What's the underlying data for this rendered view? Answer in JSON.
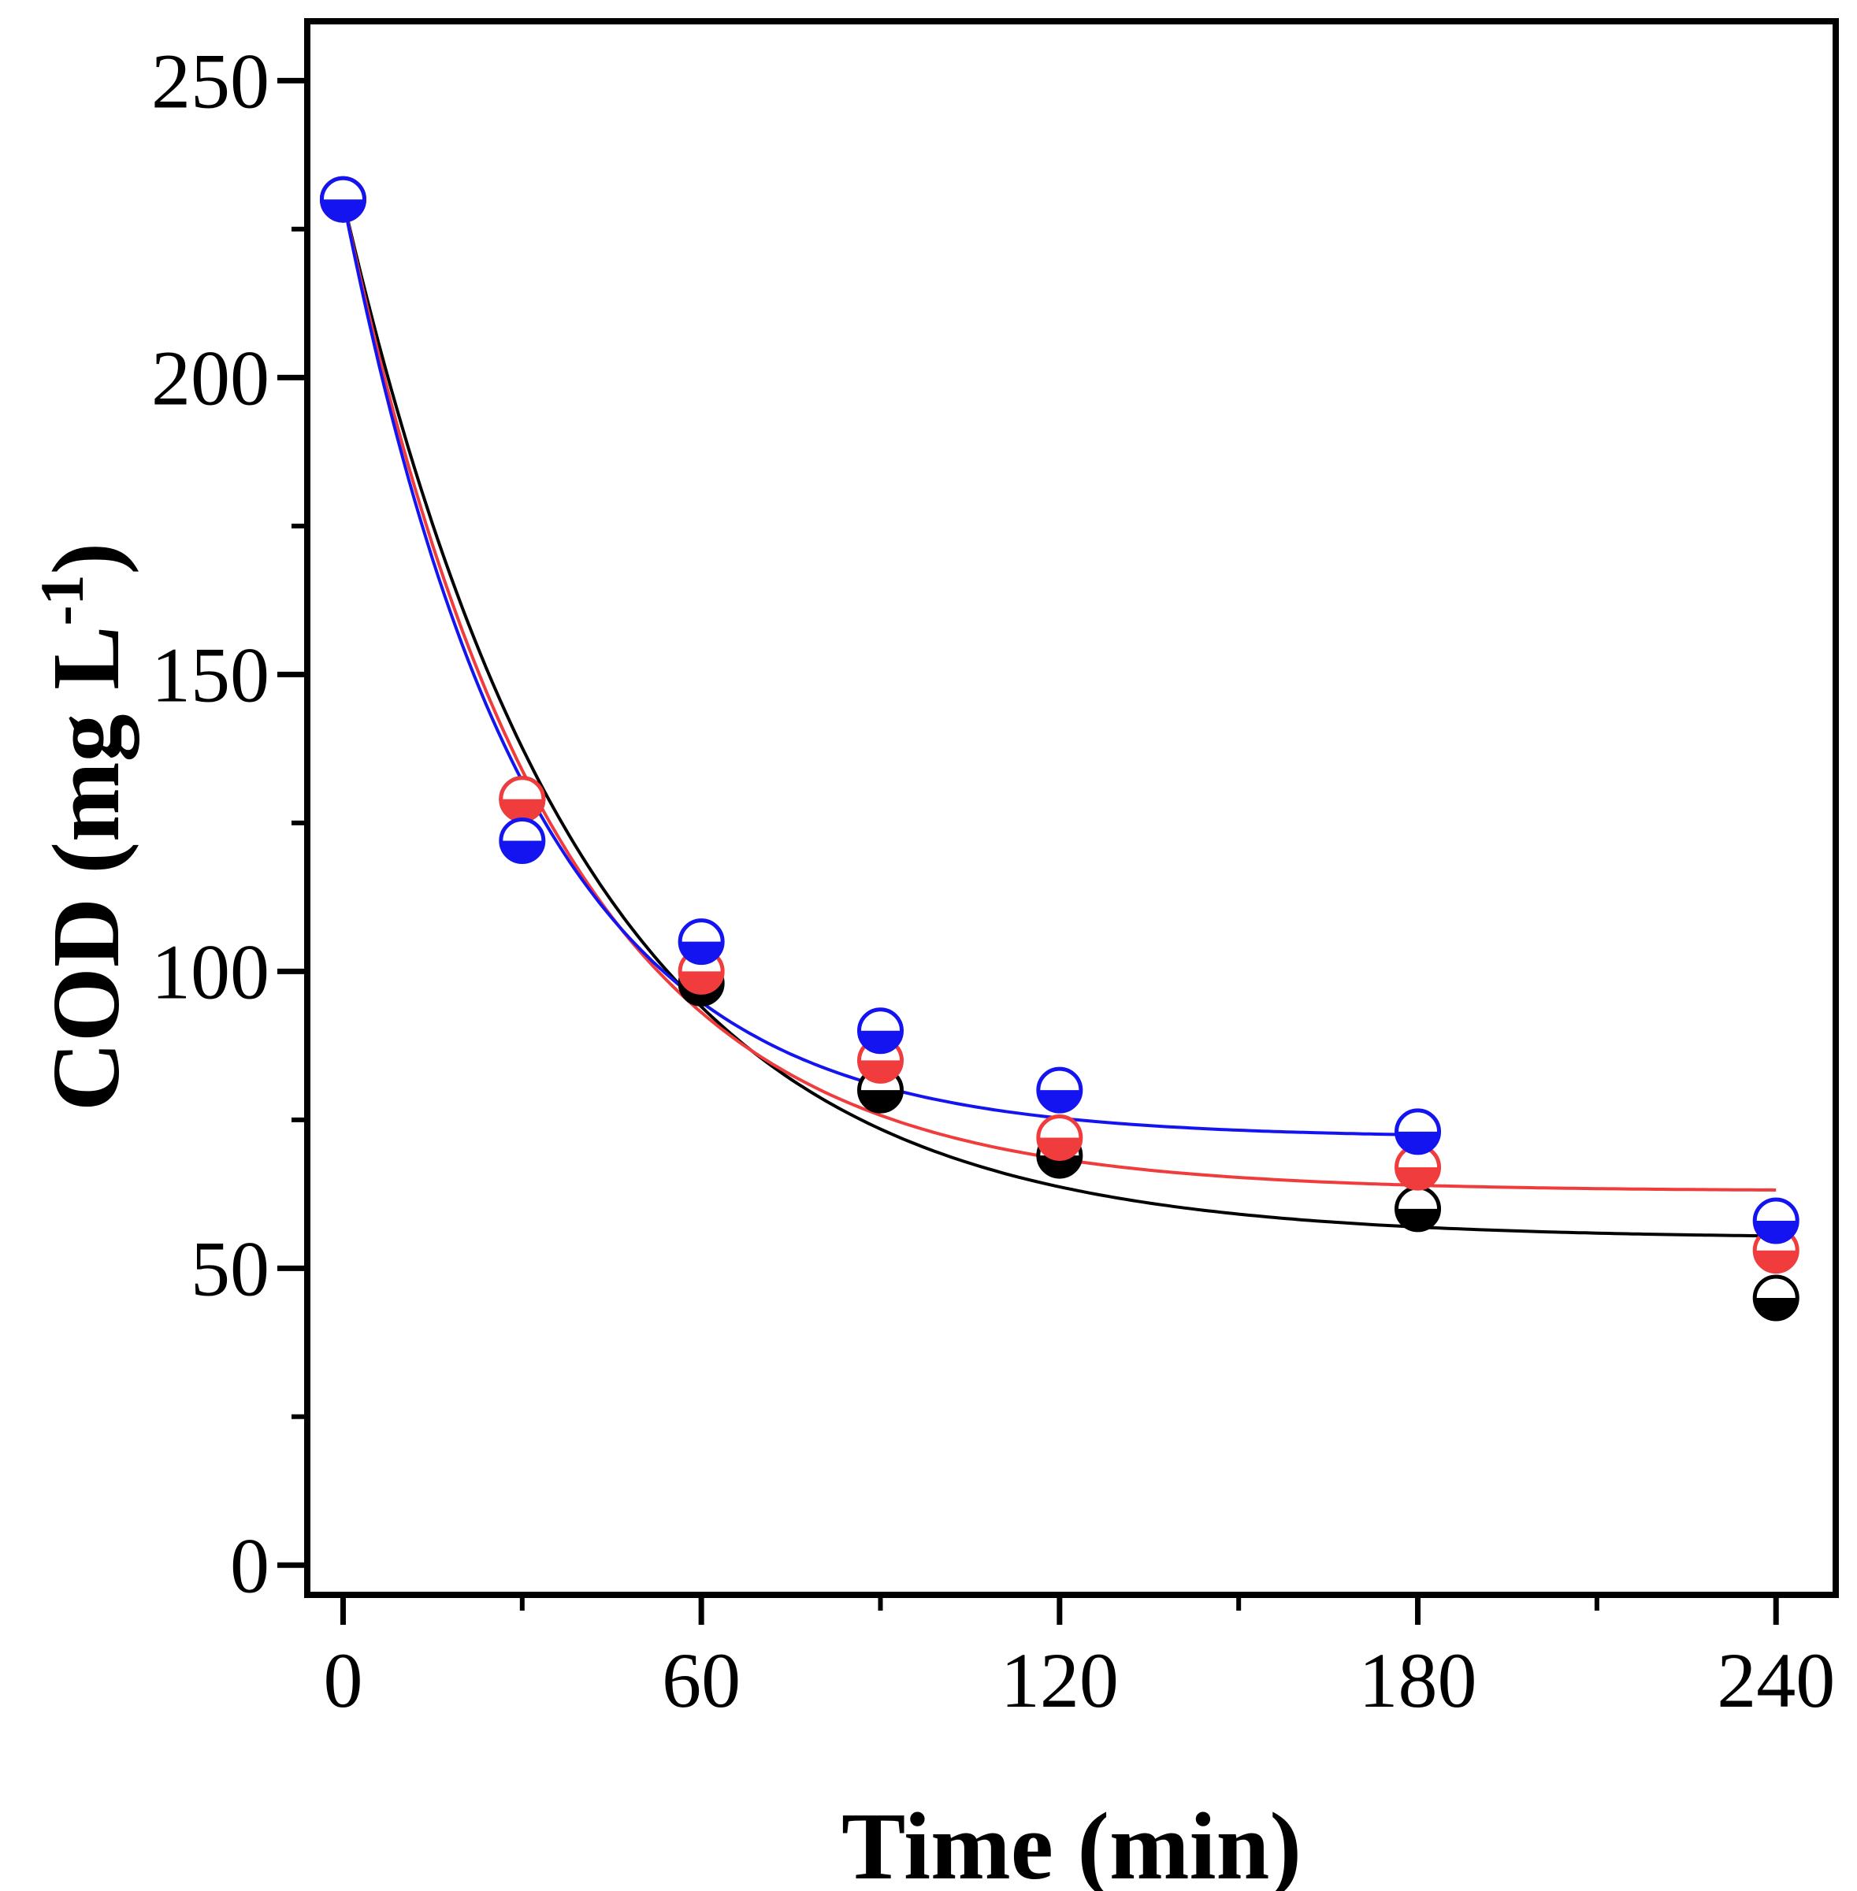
{
  "chart_data": {
    "type": "scatter",
    "title": "",
    "xlabel": "Time (min)",
    "ylabel_main": "COD (mg L",
    "ylabel_superscript": "-1",
    "ylabel_close": ")",
    "xlim": [
      -6,
      250
    ],
    "ylim": [
      -5,
      260
    ],
    "xticks": [
      0,
      60,
      120,
      180,
      240
    ],
    "xtick_labels": [
      "0",
      "60",
      "120",
      "180",
      "240"
    ],
    "yticks": [
      0,
      50,
      100,
      150,
      200,
      250
    ],
    "ytick_labels": [
      "0",
      "50",
      "100",
      "150",
      "200",
      "250"
    ],
    "yminor_ticks": [
      25,
      75,
      125,
      175,
      225
    ],
    "grid": false,
    "legend": "none",
    "series": [
      {
        "name": "series-black",
        "color": "#000000",
        "marker": "circle-half-filled-bottom",
        "x": [
          0,
          30,
          60,
          90,
          120,
          180,
          240
        ],
        "y": [
          230,
          129,
          98,
          80,
          69,
          60,
          45
        ],
        "fit": {
          "model": "exponential-decay",
          "y0": 55,
          "A": 175,
          "tau": 40
        }
      },
      {
        "name": "series-red",
        "color": "#f03c3c",
        "marker": "circle-half-filled-bottom",
        "x": [
          0,
          30,
          60,
          90,
          120,
          180,
          240
        ],
        "y": [
          230,
          129,
          100,
          85,
          72,
          67,
          53
        ],
        "fit": {
          "model": "exponential-decay",
          "y0": 63,
          "A": 167,
          "tau": 35
        }
      },
      {
        "name": "series-blue",
        "color": "#1414f0",
        "marker": "circle-half-filled-bottom",
        "x": [
          0,
          30,
          60,
          90,
          120,
          180,
          240
        ],
        "y": [
          230,
          122,
          105,
          90,
          80,
          73,
          58
        ],
        "fit": {
          "model": "exponential-decay",
          "y0": 72,
          "A": 158,
          "tau": 31,
          "x_end": 180
        }
      }
    ]
  }
}
